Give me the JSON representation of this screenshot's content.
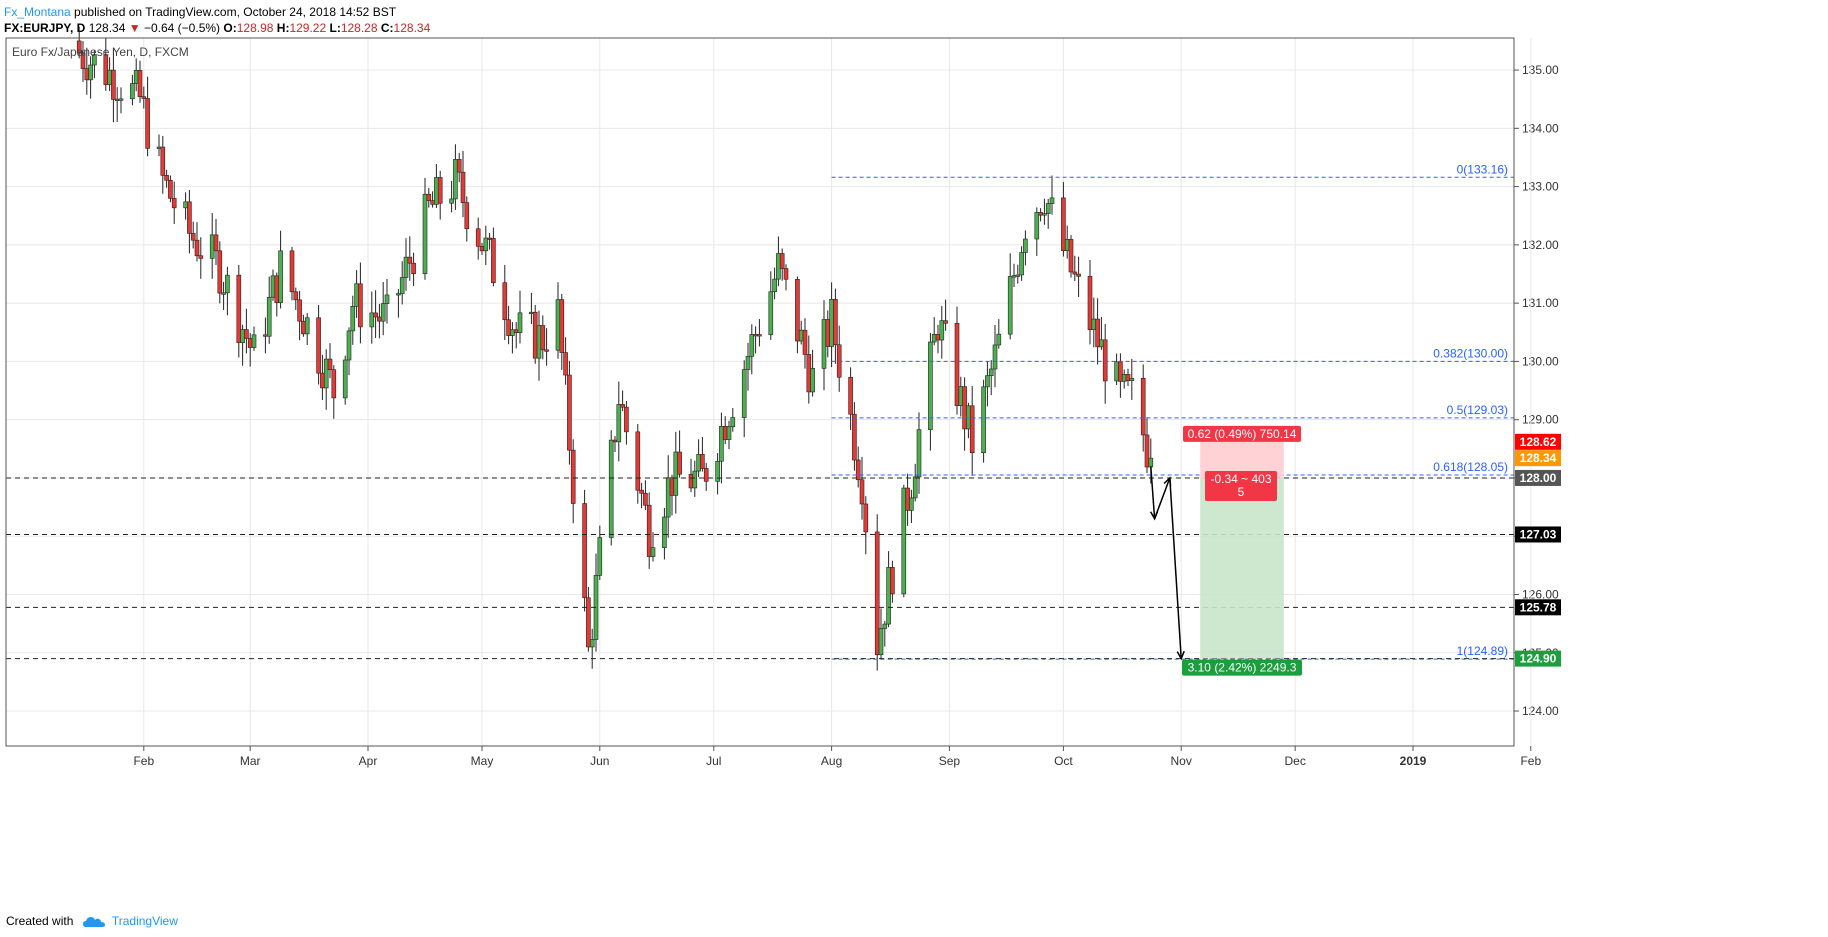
{
  "header": {
    "author": "Fx_Montana",
    "published": "published on TradingView.com, October 24, 2018 14:52 BST",
    "symbol": "FX:EURJPY, D",
    "last": "128.34",
    "change_arrow": "▼",
    "change": "−0.64 (−0.5%)",
    "ohlc": [
      {
        "label": "O:",
        "value": "128.98"
      },
      {
        "label": "H:",
        "value": "129.22"
      },
      {
        "label": "L:",
        "value": "128.28"
      },
      {
        "label": "C:",
        "value": "128.34"
      }
    ]
  },
  "footer": {
    "created_with": "Created with",
    "brand": "TradingView",
    "logo_icon": "tradingview-cloud-icon"
  },
  "colors": {
    "up": "#4caf50",
    "down": "#e53935",
    "fib": "#2962ff",
    "grid": "#e8e8e8",
    "axis_label_black": "#000000",
    "axis_label_red": "#ff0000",
    "axis_label_orange": "#ff9800",
    "axis_label_gray": "#555555",
    "tp_zone": "#c8e6c9",
    "sl_zone": "#ffcdd2"
  },
  "chart_data": {
    "type": "candlestick",
    "title": "Euro Fx/Japanese Yen, D, FXCM",
    "ylim": [
      123.4,
      135.55
    ],
    "y_ticks": [
      "124.00",
      "125.00",
      "126.00",
      "127.00",
      "128.00",
      "129.00",
      "130.00",
      "131.00",
      "132.00",
      "133.00",
      "134.00",
      "135.00"
    ],
    "x_ticks": [
      {
        "label": "Feb",
        "bold": false
      },
      {
        "label": "Mar",
        "bold": false
      },
      {
        "label": "Apr",
        "bold": false
      },
      {
        "label": "May",
        "bold": false
      },
      {
        "label": "Jun",
        "bold": false
      },
      {
        "label": "Jul",
        "bold": false
      },
      {
        "label": "Aug",
        "bold": false
      },
      {
        "label": "Sep",
        "bold": false
      },
      {
        "label": "Oct",
        "bold": false
      },
      {
        "label": "Nov",
        "bold": false
      },
      {
        "label": "Dec",
        "bold": false
      },
      {
        "label": "2019",
        "bold": true
      },
      {
        "label": "Feb",
        "bold": false
      }
    ],
    "grid": true,
    "anchors": [
      {
        "date": "2018-01-15",
        "close": 135.3
      },
      {
        "date": "2018-01-24",
        "close": 134.9
      },
      {
        "date": "2018-01-31",
        "close": 134.5
      },
      {
        "date": "2018-02-06",
        "close": 133.1
      },
      {
        "date": "2018-02-13",
        "close": 132.2
      },
      {
        "date": "2018-02-21",
        "close": 131.6
      },
      {
        "date": "2018-03-02",
        "close": 130.1
      },
      {
        "date": "2018-03-09",
        "close": 131.6
      },
      {
        "date": "2018-03-15",
        "close": 130.8
      },
      {
        "date": "2018-03-23",
        "close": 129.5
      },
      {
        "date": "2018-03-28",
        "close": 131.0
      },
      {
        "date": "2018-04-06",
        "close": 130.7
      },
      {
        "date": "2018-04-17",
        "close": 132.6
      },
      {
        "date": "2018-04-24",
        "close": 133.1
      },
      {
        "date": "2018-05-04",
        "close": 131.6
      },
      {
        "date": "2018-05-10",
        "close": 130.5
      },
      {
        "date": "2018-05-17",
        "close": 130.4
      },
      {
        "date": "2018-05-21",
        "close": 130.8
      },
      {
        "date": "2018-05-29",
        "close": 125.0
      },
      {
        "date": "2018-06-06",
        "close": 129.4
      },
      {
        "date": "2018-06-14",
        "close": 127.1
      },
      {
        "date": "2018-06-20",
        "close": 128.0
      },
      {
        "date": "2018-06-28",
        "close": 128.0
      },
      {
        "date": "2018-07-05",
        "close": 129.2
      },
      {
        "date": "2018-07-18",
        "close": 131.6
      },
      {
        "date": "2018-07-27",
        "close": 129.7
      },
      {
        "date": "2018-08-01",
        "close": 130.7
      },
      {
        "date": "2018-08-09",
        "close": 128.0
      },
      {
        "date": "2018-08-13",
        "close": 125.2
      },
      {
        "date": "2018-08-22",
        "close": 128.0
      },
      {
        "date": "2018-08-29",
        "close": 130.7
      },
      {
        "date": "2018-09-07",
        "close": 128.6
      },
      {
        "date": "2018-09-14",
        "close": 130.3
      },
      {
        "date": "2018-09-21",
        "close": 132.4
      },
      {
        "date": "2018-09-26",
        "close": 132.9
      },
      {
        "date": "2018-10-01",
        "close": 131.9
      },
      {
        "date": "2018-10-09",
        "close": 130.5
      },
      {
        "date": "2018-10-16",
        "close": 129.4
      },
      {
        "date": "2018-10-19",
        "close": 129.4
      },
      {
        "date": "2018-10-24",
        "close": 128.34
      }
    ],
    "fib_levels": [
      {
        "label": "0(133.16)",
        "value": 133.16
      },
      {
        "label": "0.382(130.00)",
        "value": 130.0
      },
      {
        "label": "0.5(129.03)",
        "value": 129.03
      },
      {
        "label": "0.618(128.05)",
        "value": 128.05
      },
      {
        "label": "1(124.89)",
        "value": 124.89
      }
    ],
    "fib_start_date": "2018-08-01",
    "horizontal_lines": [
      {
        "value": 128.0,
        "label": "128.00"
      },
      {
        "value": 127.03,
        "label": "127.03"
      },
      {
        "value": 125.78,
        "label": "125.78"
      },
      {
        "value": 124.9,
        "label": "124.90"
      }
    ],
    "price_labels": [
      {
        "value": 128.62,
        "label": "128.62"
      },
      {
        "value": 128.34,
        "label": "128.34"
      }
    ],
    "position": {
      "start_date": "2018-11-06",
      "end_date": "2018-11-28",
      "stop": 128.62,
      "entry": 128.0,
      "target": 124.9,
      "stop_label": "0.62 (0.49%) 750.14",
      "current_label_line1": "-0.34 ~ 403",
      "current_label_line2": "5",
      "target_label": "3.10 (2.42%) 2249.3"
    },
    "projection": [
      {
        "date": "2018-10-24",
        "value": 128.2
      },
      {
        "date": "2018-10-25",
        "value": 127.3
      },
      {
        "date": "2018-10-29",
        "value": 128.0
      },
      {
        "date": "2018-11-01",
        "value": 124.9
      }
    ]
  }
}
